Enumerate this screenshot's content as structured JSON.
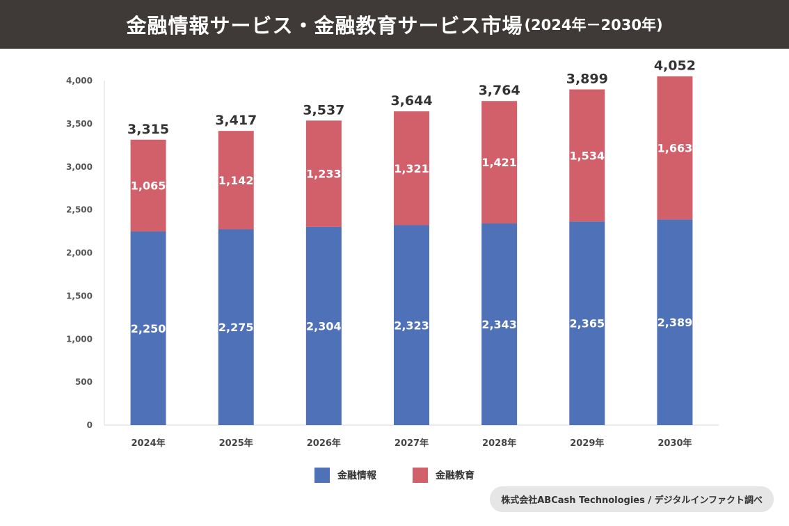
{
  "header": {
    "title": "金融情報サービス・金融教育サービス市場",
    "subtitle": "(2024年－2030年)"
  },
  "chart_data": {
    "type": "bar",
    "stacked": true,
    "categories": [
      "2024年",
      "2025年",
      "2026年",
      "2027年",
      "2028年",
      "2029年",
      "2030年"
    ],
    "series": [
      {
        "name": "金融情報",
        "color": "#4f71b8",
        "values": [
          2250,
          2275,
          2304,
          2323,
          2343,
          2365,
          2389
        ]
      },
      {
        "name": "金融教育",
        "color": "#d1606b",
        "values": [
          1065,
          1142,
          1233,
          1321,
          1421,
          1534,
          1663
        ]
      }
    ],
    "totals": [
      3315,
      3417,
      3537,
      3644,
      3764,
      3899,
      4052
    ],
    "ylim": [
      0,
      4000
    ],
    "yticks": [
      0,
      500,
      1000,
      1500,
      2000,
      2500,
      3000,
      3500,
      4000
    ],
    "grid": false,
    "legend": "bottom"
  },
  "source": "株式会社ABCash Technologies / デジタルインファクト調べ"
}
